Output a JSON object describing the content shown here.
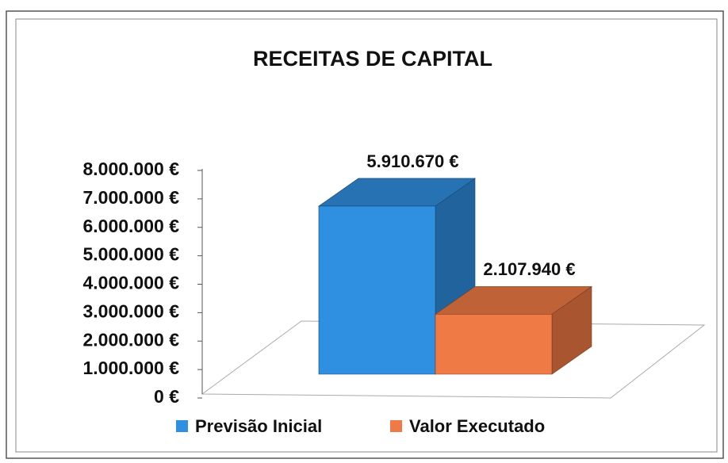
{
  "chart_data": {
    "type": "bar3d",
    "title": "RECEITAS DE CAPITAL",
    "categories": [
      null
    ],
    "series": [
      {
        "name": "Previsão Inicial",
        "color": "#2f8fe0",
        "values": [
          5910670
        ],
        "value_labels": [
          "5.910.670 €"
        ]
      },
      {
        "name": "Valor Executado",
        "color": "#f07a45",
        "values": [
          2107940
        ],
        "value_labels": [
          "2.107.940 €"
        ]
      }
    ],
    "ylim": [
      0,
      8000000
    ],
    "yticks": [
      {
        "value": 0,
        "label": "0 €"
      },
      {
        "value": 1000000,
        "label": "1.000.000 €"
      },
      {
        "value": 2000000,
        "label": "2.000.000 €"
      },
      {
        "value": 3000000,
        "label": "3.000.000 €"
      },
      {
        "value": 4000000,
        "label": "4.000.000 €"
      },
      {
        "value": 5000000,
        "label": "5.000.000 €"
      },
      {
        "value": 6000000,
        "label": "6.000.000 €"
      },
      {
        "value": 7000000,
        "label": "7.000.000 €"
      },
      {
        "value": 8000000,
        "label": "8.000.000 €"
      }
    ],
    "legend": "bottom"
  }
}
